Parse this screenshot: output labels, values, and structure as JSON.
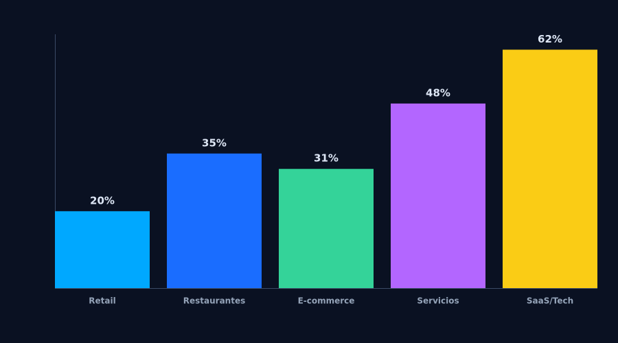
{
  "chart_data": {
    "type": "bar",
    "categories": [
      "Retail",
      "Restaurantes",
      "E-commerce",
      "Servicios",
      "SaaS/Tech"
    ],
    "values": [
      20,
      35,
      31,
      48,
      62
    ],
    "value_labels": [
      "20%",
      "35%",
      "31%",
      "48%",
      "62%"
    ],
    "colors": [
      "#00a8ff",
      "#1a6dff",
      "#34d399",
      "#b366ff",
      "#facc15"
    ],
    "ylim": [
      0,
      66
    ]
  }
}
